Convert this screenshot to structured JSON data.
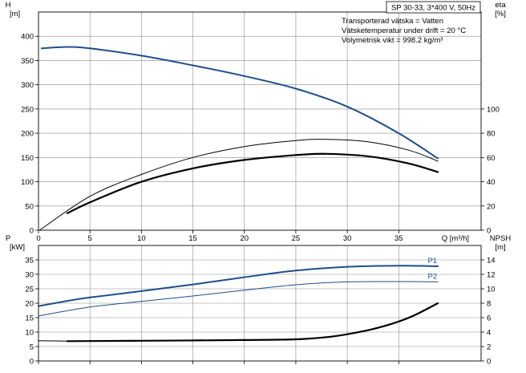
{
  "chart_data": [
    {
      "type": "line",
      "title_box": "SP 30-33, 3*400 V, 50Hz",
      "info_lines": [
        "Transporterad vätska = Vatten",
        "Vätsketemperatur under drift = 20 °C",
        "Volymetrisk vikt = 998.2 kg/m³"
      ],
      "xlabel": "Q [m³/h]",
      "xlim": [
        0,
        43
      ],
      "x_ticks": [
        0,
        5,
        10,
        15,
        20,
        25,
        30,
        35
      ],
      "y_left": {
        "label_top": "H",
        "label_unit": "[m]",
        "lim": [
          0,
          450
        ],
        "ticks": [
          0,
          50,
          100,
          150,
          200,
          250,
          300,
          350,
          400
        ]
      },
      "y_right": {
        "label_top": "eta",
        "label_unit": "[%]",
        "lim": [
          0,
          180
        ],
        "ticks": [
          0,
          20,
          40,
          60,
          80,
          100
        ]
      },
      "grid": true,
      "series": [
        {
          "axis": "left",
          "color": "#1f4e8c",
          "width": 2.0,
          "x": [
            0.3,
            2.8,
            5,
            10,
            15,
            20,
            25,
            30,
            35,
            38.8
          ],
          "y": [
            375,
            378,
            375,
            360,
            340,
            318,
            292,
            255,
            200,
            148
          ]
        },
        {
          "axis": "right",
          "color": "#000000",
          "width": 1.0,
          "x": [
            0.1,
            5,
            10,
            15,
            20,
            25,
            28,
            32,
            36,
            38.8
          ],
          "y": [
            0,
            28,
            46,
            60,
            69,
            74,
            75,
            73,
            66,
            57
          ]
        },
        {
          "axis": "right",
          "color": "#000000",
          "width": 2.2,
          "x": [
            2.8,
            5,
            10,
            15,
            20,
            25,
            28,
            32,
            36,
            38.8
          ],
          "y": [
            14,
            23,
            40,
            51,
            58,
            62,
            63,
            61,
            55,
            48
          ]
        }
      ]
    },
    {
      "type": "line",
      "xlim": [
        0,
        43
      ],
      "y_left": {
        "label_top": "P",
        "label_unit": "[kW]",
        "lim": [
          0,
          40
        ],
        "ticks": [
          0,
          5,
          10,
          15,
          20,
          25,
          30,
          35
        ]
      },
      "y_right": {
        "label_top": "NPSH",
        "label_unit": "[m]",
        "lim": [
          0,
          16
        ],
        "ticks": [
          0,
          2,
          4,
          6,
          8,
          10,
          12,
          14
        ]
      },
      "grid": true,
      "series": [
        {
          "name": "P1",
          "axis": "left",
          "color": "#1f4e8c",
          "width": 2.0,
          "x": [
            2.8,
            5,
            10,
            15,
            20,
            25,
            30,
            35,
            38.8
          ],
          "y": [
            20.8,
            22,
            24.2,
            26.5,
            29,
            31.3,
            32.6,
            33,
            32.8
          ]
        },
        {
          "axis": "left",
          "color": "#1f4e8c",
          "width": 2.0,
          "x": [
            0,
            2.8
          ],
          "y": [
            19,
            20.8
          ]
        },
        {
          "name": "P2",
          "axis": "left",
          "color": "#1f4e8c",
          "width": 1.0,
          "x": [
            0,
            5,
            10,
            15,
            20,
            25,
            30,
            35,
            38.8
          ],
          "y": [
            15.6,
            18.7,
            20.6,
            22.5,
            24.5,
            26.4,
            27.4,
            27.5,
            27.4
          ]
        },
        {
          "axis": "right",
          "color": "#000000",
          "width": 1.0,
          "x": [
            0,
            2.8
          ],
          "y": [
            2.8,
            2.75
          ]
        },
        {
          "axis": "right",
          "color": "#000000",
          "width": 2.2,
          "x": [
            2.8,
            10,
            20,
            25,
            28,
            30,
            33,
            36,
            38.8
          ],
          "y": [
            2.75,
            2.8,
            2.9,
            3.0,
            3.3,
            3.7,
            4.6,
            6.0,
            8.0
          ]
        }
      ],
      "series_labels": [
        {
          "text": "P1",
          "series": 0,
          "color": "#1f4e8c"
        },
        {
          "text": "P2",
          "series": 2,
          "color": "#1f4e8c"
        }
      ]
    }
  ]
}
